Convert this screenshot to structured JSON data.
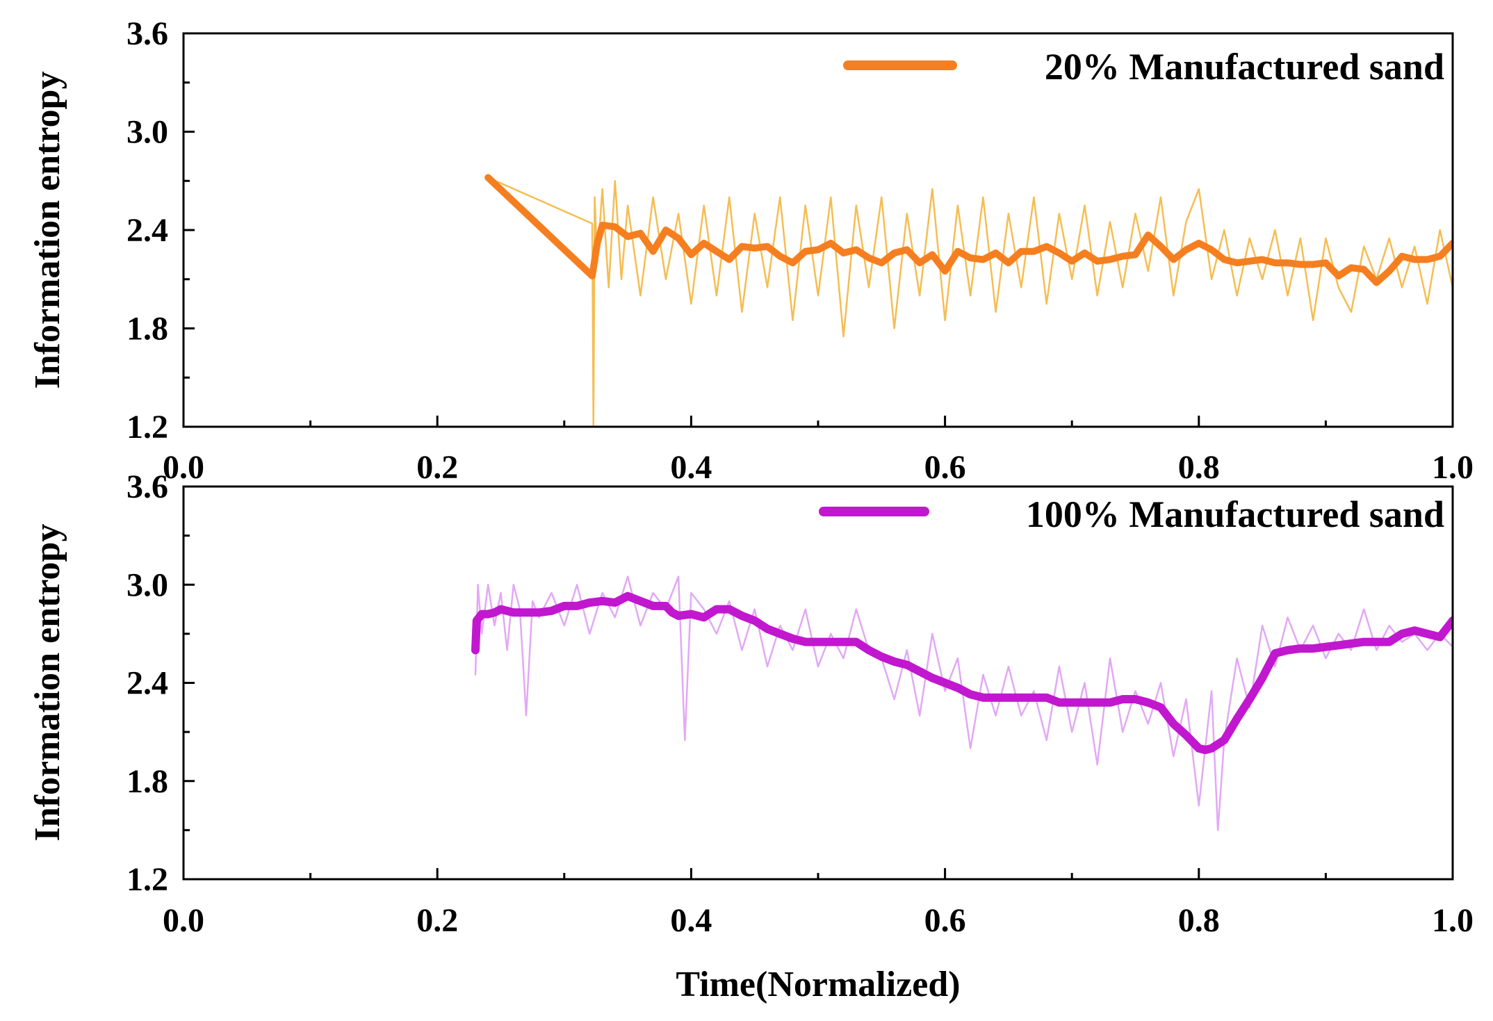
{
  "chart_data": [
    {
      "type": "line",
      "panel": "top",
      "title": "",
      "xlabel": "",
      "ylabel": "Information entropy",
      "xlim": [
        0.0,
        1.0
      ],
      "ylim": [
        1.2,
        3.6
      ],
      "xticks": [
        "0.0",
        "0.2",
        "0.4",
        "0.6",
        "0.8",
        "1.0"
      ],
      "yticks": [
        "1.2",
        "1.8",
        "2.4",
        "3.0",
        "3.6"
      ],
      "legend": {
        "label": "20% Manufactured sand",
        "placement": "top-right"
      },
      "series": [
        {
          "name": "20% Manufactured sand (raw)",
          "color": "#f5bd52",
          "x": [
            0.24,
            0.322,
            0.323,
            0.324,
            0.326,
            0.33,
            0.335,
            0.34,
            0.345,
            0.35,
            0.36,
            0.37,
            0.38,
            0.39,
            0.4,
            0.41,
            0.42,
            0.43,
            0.44,
            0.45,
            0.46,
            0.47,
            0.48,
            0.49,
            0.5,
            0.51,
            0.52,
            0.53,
            0.54,
            0.55,
            0.56,
            0.57,
            0.58,
            0.59,
            0.6,
            0.61,
            0.62,
            0.63,
            0.64,
            0.65,
            0.66,
            0.67,
            0.68,
            0.69,
            0.7,
            0.71,
            0.72,
            0.73,
            0.74,
            0.75,
            0.76,
            0.77,
            0.78,
            0.79,
            0.8,
            0.81,
            0.82,
            0.83,
            0.84,
            0.85,
            0.86,
            0.87,
            0.88,
            0.89,
            0.9,
            0.91,
            0.92,
            0.93,
            0.94,
            0.95,
            0.96,
            0.97,
            0.98,
            0.99,
            1.0
          ],
          "y": [
            2.72,
            2.44,
            1.2,
            2.6,
            2.2,
            2.65,
            2.05,
            2.7,
            2.1,
            2.55,
            2.0,
            2.6,
            2.1,
            2.5,
            1.95,
            2.55,
            2.0,
            2.6,
            1.9,
            2.5,
            2.05,
            2.6,
            1.85,
            2.55,
            2.0,
            2.6,
            1.75,
            2.55,
            2.05,
            2.6,
            1.8,
            2.5,
            2.0,
            2.65,
            1.85,
            2.55,
            2.0,
            2.6,
            1.9,
            2.5,
            2.05,
            2.6,
            1.95,
            2.5,
            2.1,
            2.55,
            2.0,
            2.45,
            2.05,
            2.5,
            2.15,
            2.6,
            2.0,
            2.45,
            2.65,
            2.1,
            2.4,
            2.0,
            2.35,
            2.1,
            2.4,
            2.0,
            2.35,
            1.85,
            2.35,
            2.05,
            1.9,
            2.3,
            2.1,
            2.35,
            2.05,
            2.3,
            1.95,
            2.4,
            2.05
          ]
        },
        {
          "name": "20% Manufactured sand (smoothed)",
          "color": "#f57f20",
          "x": [
            0.24,
            0.322,
            0.326,
            0.33,
            0.34,
            0.35,
            0.36,
            0.37,
            0.38,
            0.39,
            0.4,
            0.41,
            0.42,
            0.43,
            0.44,
            0.45,
            0.46,
            0.47,
            0.48,
            0.49,
            0.5,
            0.51,
            0.52,
            0.53,
            0.54,
            0.55,
            0.56,
            0.57,
            0.58,
            0.59,
            0.6,
            0.61,
            0.62,
            0.63,
            0.64,
            0.65,
            0.66,
            0.67,
            0.68,
            0.69,
            0.7,
            0.71,
            0.72,
            0.73,
            0.74,
            0.75,
            0.76,
            0.77,
            0.78,
            0.79,
            0.8,
            0.81,
            0.82,
            0.83,
            0.84,
            0.85,
            0.86,
            0.87,
            0.88,
            0.89,
            0.9,
            0.91,
            0.92,
            0.93,
            0.94,
            0.95,
            0.96,
            0.97,
            0.98,
            0.99,
            1.0
          ],
          "y": [
            2.72,
            2.12,
            2.32,
            2.43,
            2.42,
            2.36,
            2.38,
            2.27,
            2.4,
            2.35,
            2.25,
            2.32,
            2.27,
            2.22,
            2.3,
            2.29,
            2.3,
            2.24,
            2.2,
            2.27,
            2.28,
            2.32,
            2.26,
            2.28,
            2.23,
            2.2,
            2.26,
            2.28,
            2.2,
            2.25,
            2.15,
            2.27,
            2.23,
            2.22,
            2.26,
            2.2,
            2.27,
            2.27,
            2.3,
            2.26,
            2.21,
            2.26,
            2.21,
            2.22,
            2.24,
            2.25,
            2.37,
            2.3,
            2.22,
            2.28,
            2.32,
            2.28,
            2.22,
            2.2,
            2.21,
            2.22,
            2.2,
            2.2,
            2.19,
            2.19,
            2.2,
            2.12,
            2.17,
            2.16,
            2.08,
            2.15,
            2.24,
            2.22,
            2.22,
            2.24,
            2.32
          ]
        }
      ]
    },
    {
      "type": "line",
      "panel": "bottom",
      "title": "",
      "xlabel": "Time(Normalized)",
      "ylabel": "Information entropy",
      "xlim": [
        0.0,
        1.0
      ],
      "ylim": [
        1.2,
        3.6
      ],
      "xticks": [
        "0.0",
        "0.2",
        "0.4",
        "0.6",
        "0.8",
        "1.0"
      ],
      "yticks": [
        "1.2",
        "1.8",
        "2.4",
        "3.0",
        "3.6"
      ],
      "legend": {
        "label": "100% Manufactured sand",
        "placement": "top-right"
      },
      "series": [
        {
          "name": "100% Manufactured sand (raw)",
          "color": "#e2a8f5",
          "x": [
            0.23,
            0.232,
            0.235,
            0.24,
            0.245,
            0.25,
            0.255,
            0.26,
            0.265,
            0.27,
            0.275,
            0.28,
            0.29,
            0.3,
            0.31,
            0.32,
            0.33,
            0.34,
            0.35,
            0.36,
            0.37,
            0.38,
            0.39,
            0.395,
            0.4,
            0.41,
            0.42,
            0.43,
            0.44,
            0.45,
            0.46,
            0.47,
            0.48,
            0.49,
            0.5,
            0.51,
            0.52,
            0.53,
            0.54,
            0.55,
            0.56,
            0.57,
            0.58,
            0.59,
            0.6,
            0.61,
            0.62,
            0.63,
            0.64,
            0.65,
            0.66,
            0.67,
            0.68,
            0.69,
            0.7,
            0.71,
            0.72,
            0.73,
            0.74,
            0.75,
            0.76,
            0.77,
            0.78,
            0.79,
            0.8,
            0.81,
            0.815,
            0.82,
            0.83,
            0.84,
            0.85,
            0.86,
            0.87,
            0.88,
            0.89,
            0.9,
            0.91,
            0.92,
            0.93,
            0.94,
            0.95,
            0.96,
            0.97,
            0.98,
            0.99,
            1.0
          ],
          "y": [
            2.45,
            3.0,
            2.7,
            3.0,
            2.75,
            2.95,
            2.6,
            3.0,
            2.85,
            2.2,
            2.9,
            2.8,
            2.95,
            2.75,
            3.0,
            2.7,
            2.95,
            2.8,
            3.05,
            2.75,
            2.95,
            2.85,
            3.05,
            2.05,
            2.95,
            2.85,
            2.7,
            2.9,
            2.6,
            2.85,
            2.5,
            2.75,
            2.6,
            2.85,
            2.5,
            2.7,
            2.55,
            2.85,
            2.6,
            2.55,
            2.3,
            2.6,
            2.2,
            2.7,
            2.35,
            2.55,
            2.0,
            2.45,
            2.2,
            2.5,
            2.2,
            2.35,
            2.05,
            2.5,
            2.1,
            2.4,
            1.9,
            2.55,
            2.1,
            2.35,
            2.15,
            2.4,
            1.95,
            2.3,
            1.65,
            2.35,
            1.5,
            2.05,
            2.55,
            2.25,
            2.75,
            2.5,
            2.8,
            2.6,
            2.75,
            2.55,
            2.7,
            2.6,
            2.85,
            2.6,
            2.75,
            2.65,
            2.7,
            2.6,
            2.7,
            2.62
          ]
        },
        {
          "name": "100% Manufactured sand (smoothed)",
          "color": "#c117cf",
          "x": [
            0.23,
            0.231,
            0.235,
            0.24,
            0.245,
            0.25,
            0.26,
            0.27,
            0.28,
            0.29,
            0.3,
            0.31,
            0.32,
            0.33,
            0.34,
            0.35,
            0.36,
            0.37,
            0.38,
            0.385,
            0.39,
            0.4,
            0.41,
            0.42,
            0.43,
            0.44,
            0.45,
            0.46,
            0.47,
            0.48,
            0.49,
            0.5,
            0.51,
            0.52,
            0.53,
            0.54,
            0.55,
            0.56,
            0.57,
            0.58,
            0.59,
            0.6,
            0.61,
            0.62,
            0.63,
            0.64,
            0.65,
            0.66,
            0.67,
            0.68,
            0.69,
            0.7,
            0.71,
            0.72,
            0.73,
            0.74,
            0.75,
            0.76,
            0.77,
            0.78,
            0.79,
            0.8,
            0.805,
            0.81,
            0.82,
            0.83,
            0.84,
            0.85,
            0.86,
            0.87,
            0.88,
            0.89,
            0.9,
            0.91,
            0.92,
            0.93,
            0.94,
            0.95,
            0.96,
            0.97,
            0.98,
            0.99,
            1.0
          ],
          "y": [
            2.6,
            2.78,
            2.82,
            2.82,
            2.83,
            2.85,
            2.83,
            2.83,
            2.83,
            2.84,
            2.87,
            2.87,
            2.89,
            2.9,
            2.89,
            2.93,
            2.9,
            2.87,
            2.87,
            2.83,
            2.81,
            2.82,
            2.8,
            2.85,
            2.85,
            2.81,
            2.78,
            2.73,
            2.7,
            2.67,
            2.65,
            2.65,
            2.65,
            2.65,
            2.65,
            2.6,
            2.56,
            2.53,
            2.51,
            2.47,
            2.43,
            2.4,
            2.37,
            2.33,
            2.31,
            2.31,
            2.31,
            2.31,
            2.31,
            2.31,
            2.28,
            2.28,
            2.28,
            2.28,
            2.28,
            2.3,
            2.3,
            2.28,
            2.25,
            2.15,
            2.08,
            2.0,
            1.99,
            2.0,
            2.05,
            2.18,
            2.3,
            2.43,
            2.58,
            2.6,
            2.61,
            2.61,
            2.62,
            2.63,
            2.64,
            2.65,
            2.65,
            2.65,
            2.7,
            2.72,
            2.7,
            2.68,
            2.78
          ]
        }
      ]
    }
  ]
}
